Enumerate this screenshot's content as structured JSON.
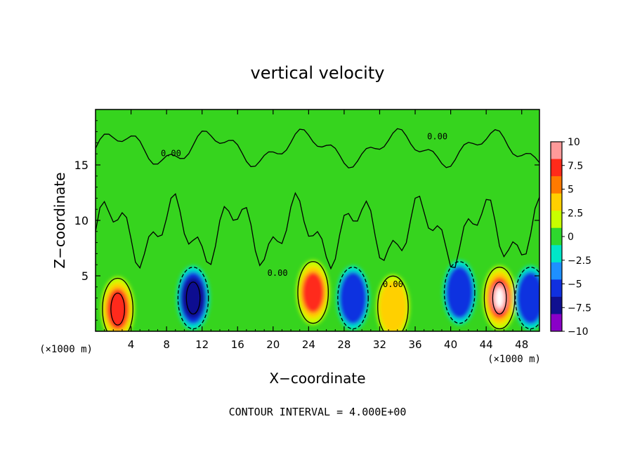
{
  "title": "vertical velocity",
  "footer": "CONTOUR INTERVAL = 4.000E+00",
  "chart_data": {
    "type": "heatmap",
    "title": "vertical velocity",
    "xlabel": "X−coordinate",
    "ylabel": "Z−coordinate",
    "x_unit_left": "(×1000 m)",
    "x_unit_right": "(×1000 m)",
    "xlim": [
      0,
      50
    ],
    "ylim": [
      0,
      20
    ],
    "x_ticks": [
      4,
      8,
      12,
      16,
      20,
      24,
      28,
      32,
      36,
      40,
      44,
      48
    ],
    "x_tick_labels": [
      "4",
      "8",
      "12",
      "16",
      "20",
      "24",
      "28",
      "32",
      "36",
      "40",
      "44",
      "48"
    ],
    "y_ticks": [
      5,
      10,
      15
    ],
    "y_tick_labels": [
      "5",
      "10",
      "15"
    ],
    "colorbar": {
      "ticks": [
        10,
        7.5,
        5,
        2.5,
        0,
        -2.5,
        -5,
        -7.5,
        -10
      ],
      "tick_labels": [
        "10",
        "7.5",
        "5",
        "2.5",
        "0",
        "−2.5",
        "−5",
        "−7.5",
        "−10"
      ],
      "colors": [
        "#ff9a9a",
        "#ff2a1a",
        "#ff7a00",
        "#ffd000",
        "#c8ff00",
        "#2ed82e",
        "#00e6c8",
        "#1e90ff",
        "#1030e0",
        "#101090",
        "#8a00c8"
      ]
    },
    "contour_labels": [
      "0.00",
      "0.00",
      "0.00",
      "0.00"
    ],
    "features": [
      {
        "x": 2.5,
        "z": 2.0,
        "w": 8.5
      },
      {
        "x": 11.0,
        "z": 3.0,
        "w": -8.5
      },
      {
        "x": 24.5,
        "z": 3.5,
        "w": 7.5
      },
      {
        "x": 29.0,
        "z": 3.0,
        "w": -6.5
      },
      {
        "x": 33.5,
        "z": 2.2,
        "w": 6.0
      },
      {
        "x": 41.0,
        "z": 3.5,
        "w": -6.0
      },
      {
        "x": 45.5,
        "z": 3.0,
        "w": 10.0
      },
      {
        "x": 49.0,
        "z": 3.0,
        "w": -6.0
      }
    ]
  }
}
